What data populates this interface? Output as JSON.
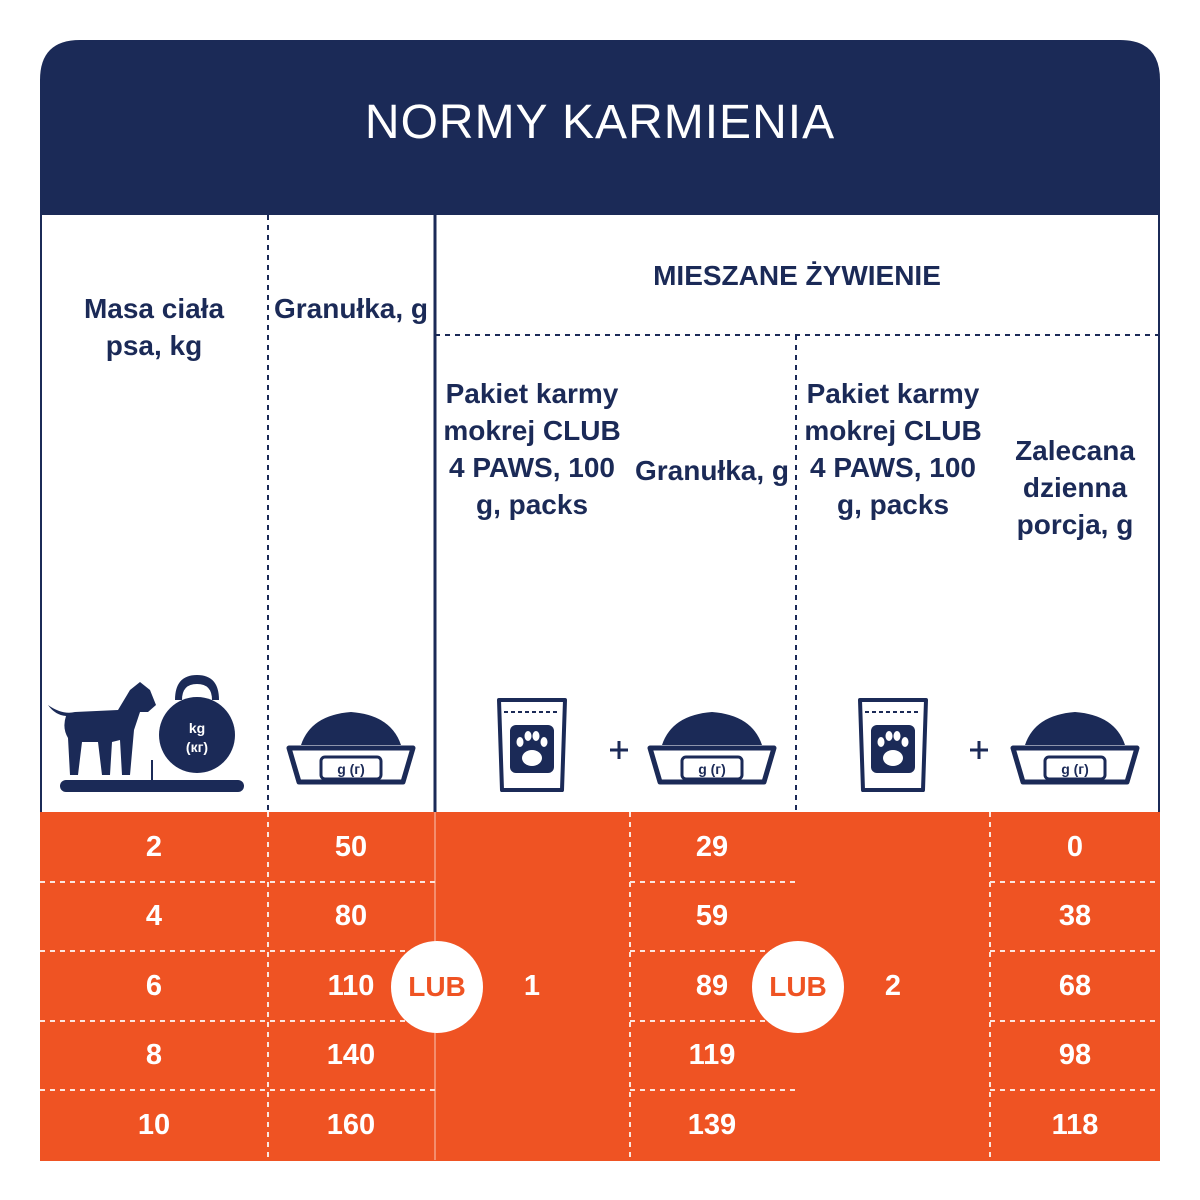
{
  "title": "NORMY KARMIENIA",
  "headers": {
    "weight": "Masa ciała psa, kg",
    "dry": "Granułka, g",
    "mixed_group": "MIESZANE ŻYWIENIE",
    "pack1": "Pakiet karmy mokrej CLUB 4 PAWS, 100 g, packs",
    "dry1": "Granułka, g",
    "pack2": "Pakiet karmy mokrej CLUB 4 PAWS, 100 g, packs",
    "daily2": "Zalecana dzienna porcja, g"
  },
  "icon_labels": {
    "kg": "kg",
    "kg_ru": "(кг)",
    "bowl": "g (г)"
  },
  "or_label": "LUB",
  "packs": [
    1,
    2
  ],
  "rows": [
    [
      2,
      50,
      29,
      0
    ],
    [
      4,
      80,
      59,
      38
    ],
    [
      6,
      110,
      89,
      68
    ],
    [
      8,
      140,
      119,
      98
    ],
    [
      10,
      160,
      139,
      118
    ]
  ]
}
